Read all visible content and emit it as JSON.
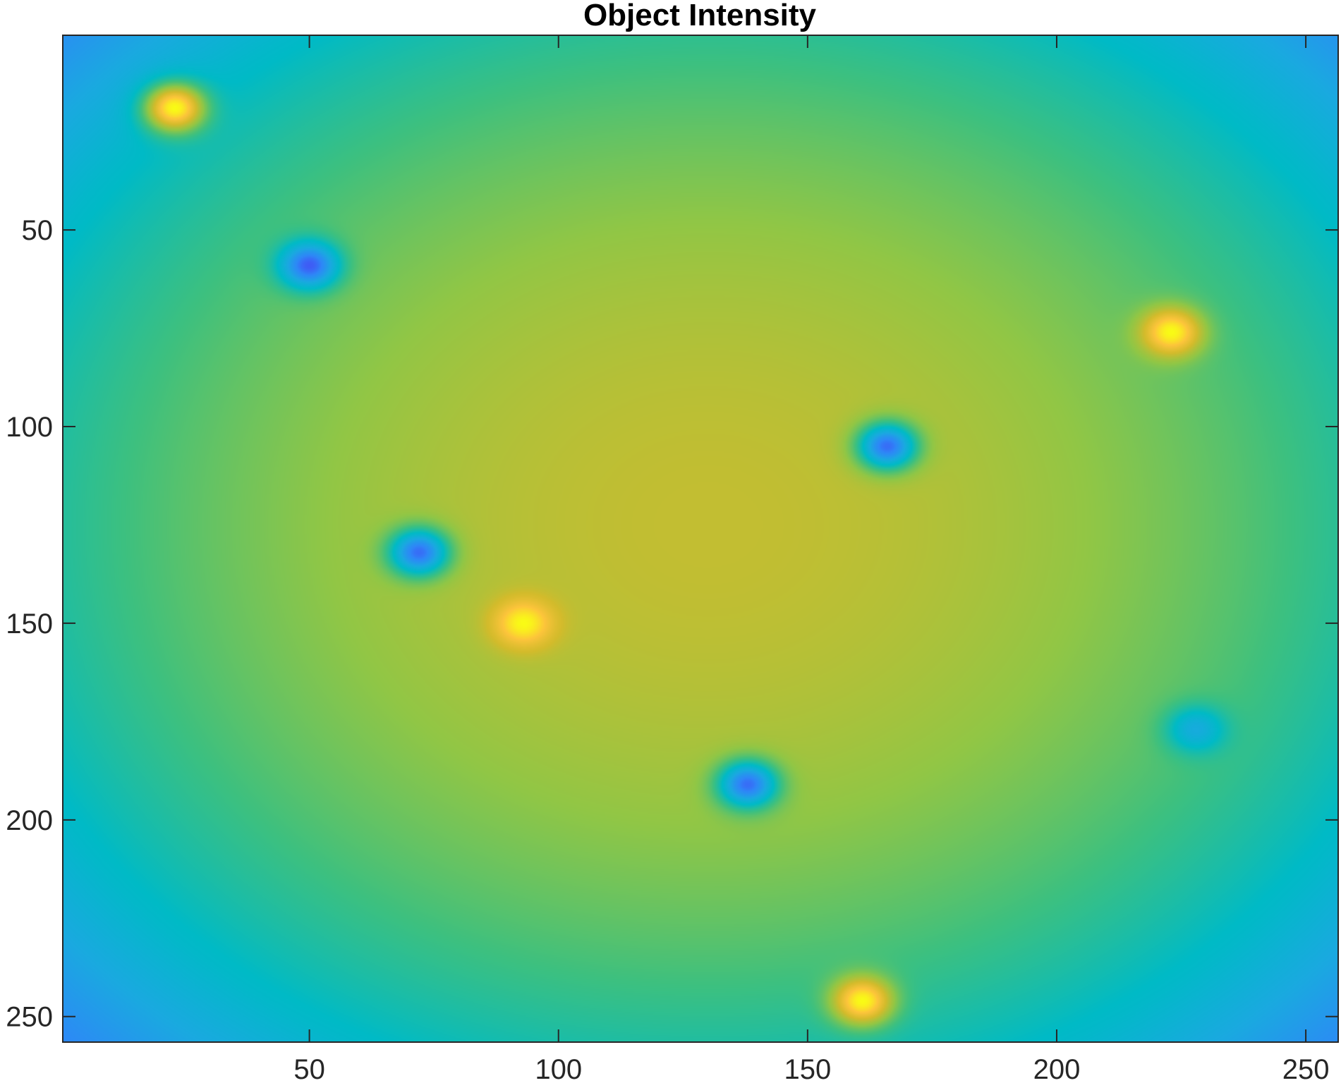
{
  "chart_data": {
    "type": "heatmap",
    "title": "Object Intensity",
    "xlabel": "",
    "ylabel": "",
    "xlim": [
      0.5,
      256.5
    ],
    "ylim": [
      0.5,
      256.5
    ],
    "y_direction": "reversed",
    "xticks": [
      50,
      100,
      150,
      200,
      250
    ],
    "yticks": [
      50,
      100,
      150,
      200,
      250
    ],
    "colormap": "parula",
    "colormap_stops": [
      "#3e26a8",
      "#4745f4",
      "#2e87f7",
      "#1aa9e0",
      "#00bac6",
      "#3dc07f",
      "#91c645",
      "#d3bb2b",
      "#fcc43b",
      "#f9fb15"
    ],
    "background": {
      "shape": "radial",
      "center": [
        130,
        125
      ],
      "radius_x": 150,
      "radius_y": 150,
      "center_level": 0.75,
      "ring_level": 0.43,
      "corner_level": 0.12
    },
    "bright_spots": [
      {
        "x": 23,
        "y": 19,
        "level": 1.0
      },
      {
        "x": 223,
        "y": 76,
        "level": 1.0
      },
      {
        "x": 93,
        "y": 150,
        "level": 1.0
      },
      {
        "x": 161,
        "y": 246,
        "level": 1.0
      }
    ],
    "dark_spots": [
      {
        "x": 50,
        "y": 59,
        "level": 0.15
      },
      {
        "x": 166,
        "y": 105,
        "level": 0.18
      },
      {
        "x": 72,
        "y": 132,
        "level": 0.18
      },
      {
        "x": 138,
        "y": 191,
        "level": 0.18
      },
      {
        "x": 228,
        "y": 177,
        "level": 0.35
      }
    ],
    "grid": false,
    "colorbar": false
  }
}
